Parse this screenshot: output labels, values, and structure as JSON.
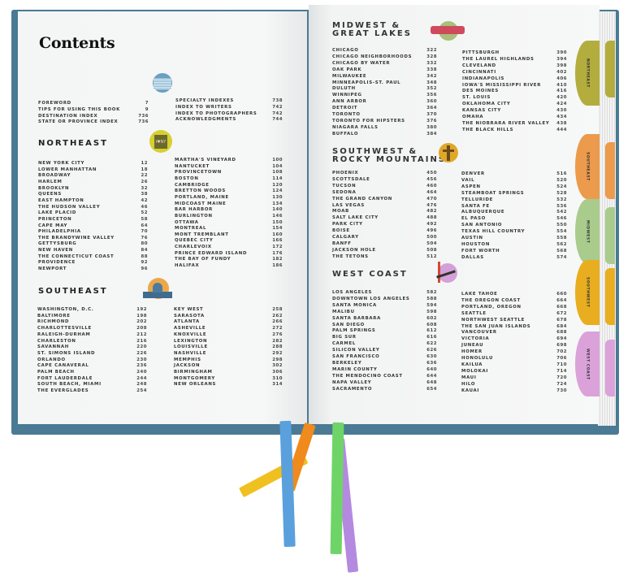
{
  "left_page": {
    "title": "Contents",
    "front_matter": {
      "col1": [
        [
          "FOREWORD",
          "7"
        ],
        [
          "TIPS FOR USING THIS BOOK",
          "9"
        ],
        [
          "DESTINATION INDEX",
          "736"
        ],
        [
          "STATE OR PROVINCE INDEX",
          "736"
        ]
      ],
      "col2": [
        [
          "SPECIALTY INDEXES",
          "738"
        ],
        [
          "INDEX TO WRITERS",
          "742"
        ],
        [
          "INDEX TO PHOTOGRAPHERS",
          "742"
        ],
        [
          "ACKNOWLEDGMENTS",
          "744"
        ]
      ]
    },
    "northeast": {
      "heading": "NORTHEAST",
      "icon_text": "I♥NY",
      "col1": [
        [
          "NEW YORK CITY",
          "12"
        ],
        [
          "LOWER MANHATTAN",
          "18"
        ],
        [
          "BROADWAY",
          "22"
        ],
        [
          "HARLEM",
          "26"
        ],
        [
          "BROOKLYN",
          "32"
        ],
        [
          "QUEENS",
          "38"
        ],
        [
          "EAST HAMPTON",
          "42"
        ],
        [
          "THE HUDSON VALLEY",
          "46"
        ],
        [
          "LAKE PLACID",
          "52"
        ],
        [
          "PRINCETON",
          "58"
        ],
        [
          "CAPE MAY",
          "64"
        ],
        [
          "PHILADELPHIA",
          "70"
        ],
        [
          "THE BRANDYWINE VALLEY",
          "76"
        ],
        [
          "GETTYSBURG",
          "80"
        ],
        [
          "NEW HAVEN",
          "84"
        ],
        [
          "THE CONNECTICUT COAST",
          "88"
        ],
        [
          "PROVIDENCE",
          "92"
        ],
        [
          "NEWPORT",
          "96"
        ]
      ],
      "col2": [
        [
          "MARTHA'S VINEYARD",
          "100"
        ],
        [
          "NANTUCKET",
          "104"
        ],
        [
          "PROVINCETOWN",
          "108"
        ],
        [
          "BOSTON",
          "114"
        ],
        [
          "CAMBRIDGE",
          "120"
        ],
        [
          "BRETTON WOODS",
          "124"
        ],
        [
          "PORTLAND, MAINE",
          "130"
        ],
        [
          "MIDCOAST MAINE",
          "134"
        ],
        [
          "BAR HARBOR",
          "140"
        ],
        [
          "BURLINGTON",
          "146"
        ],
        [
          "OTTAWA",
          "150"
        ],
        [
          "MONTREAL",
          "154"
        ],
        [
          "MONT TREMBLANT",
          "160"
        ],
        [
          "QUEBEC CITY",
          "166"
        ],
        [
          "CHARLEVOIX",
          "172"
        ],
        [
          "PRINCE EDWARD ISLAND",
          "176"
        ],
        [
          "THE BAY OF FUNDY",
          "182"
        ],
        [
          "HALIFAX",
          "186"
        ]
      ]
    },
    "southeast": {
      "heading": "SOUTHEAST",
      "col1": [
        [
          "WASHINGTON, D.C.",
          "192"
        ],
        [
          "BALTIMORE",
          "198"
        ],
        [
          "RICHMOND",
          "202"
        ],
        [
          "CHARLOTTESVILLE",
          "208"
        ],
        [
          "RALEIGH-DURHAM",
          "212"
        ],
        [
          "CHARLESTON",
          "216"
        ],
        [
          "SAVANNAH",
          "220"
        ],
        [
          "ST. SIMONS ISLAND",
          "226"
        ],
        [
          "ORLANDO",
          "230"
        ],
        [
          "CAPE CANAVERAL",
          "236"
        ],
        [
          "PALM BEACH",
          "240"
        ],
        [
          "FORT LAUDERDALE",
          "244"
        ],
        [
          "SOUTH BEACH, MIAMI",
          "248"
        ],
        [
          "THE EVERGLADES",
          "254"
        ]
      ],
      "col2": [
        [
          "KEY WEST",
          "258"
        ],
        [
          "SARASOTA",
          "262"
        ],
        [
          "ATLANTA",
          "266"
        ],
        [
          "ASHEVILLE",
          "272"
        ],
        [
          "KNOXVILLE",
          "276"
        ],
        [
          "LEXINGTON",
          "282"
        ],
        [
          "LOUISVILLE",
          "288"
        ],
        [
          "NASHVILLE",
          "292"
        ],
        [
          "MEMPHIS",
          "298"
        ],
        [
          "JACKSON",
          "302"
        ],
        [
          "BIRMINGHAM",
          "306"
        ],
        [
          "MONTGOMERY",
          "310"
        ],
        [
          "NEW ORLEANS",
          "314"
        ]
      ]
    }
  },
  "right_page": {
    "midwest": {
      "heading_line1": "MIDWEST &",
      "heading_line2": "GREAT LAKES",
      "col1": [
        [
          "CHICAGO",
          "322"
        ],
        [
          "CHICAGO NEIGHBORHOODS",
          "328"
        ],
        [
          "CHICAGO BY WATER",
          "332"
        ],
        [
          "OAK PARK",
          "338"
        ],
        [
          "MILWAUKEE",
          "342"
        ],
        [
          "MINNEAPOLIS-ST. PAUL",
          "348"
        ],
        [
          "DULUTH",
          "352"
        ],
        [
          "WINNIPEG",
          "356"
        ],
        [
          "ANN ARBOR",
          "360"
        ],
        [
          "DETROIT",
          "364"
        ],
        [
          "TORONTO",
          "370"
        ],
        [
          "TORONTO FOR HIPSTERS",
          "376"
        ],
        [
          "NIAGARA FALLS",
          "380"
        ],
        [
          "BUFFALO",
          "384"
        ]
      ],
      "col2": [
        [
          "PITTSBURGH",
          "390"
        ],
        [
          "THE LAUREL HIGHLANDS",
          "394"
        ],
        [
          "CLEVELAND",
          "398"
        ],
        [
          "CINCINNATI",
          "402"
        ],
        [
          "INDIANAPOLIS",
          "406"
        ],
        [
          "IOWA'S MISSISSIPPI RIVER",
          "410"
        ],
        [
          "DES MOINES",
          "416"
        ],
        [
          "ST. LOUIS",
          "420"
        ],
        [
          "OKLAHOMA CITY",
          "424"
        ],
        [
          "KANSAS CITY",
          "430"
        ],
        [
          "OMAHA",
          "434"
        ],
        [
          "THE NIOBRARA RIVER VALLEY",
          "438"
        ],
        [
          "THE BLACK HILLS",
          "444"
        ]
      ]
    },
    "southwest": {
      "heading_line1": "SOUTHWEST &",
      "heading_line2": "ROCKY MOUNTAINS",
      "col1": [
        [
          "PHOENIX",
          "450"
        ],
        [
          "SCOTTSDALE",
          "456"
        ],
        [
          "TUCSON",
          "460"
        ],
        [
          "SEDONA",
          "464"
        ],
        [
          "THE GRAND CANYON",
          "470"
        ],
        [
          "LAS VEGAS",
          "476"
        ],
        [
          "MOAB",
          "482"
        ],
        [
          "SALT LAKE CITY",
          "488"
        ],
        [
          "PARK CITY",
          "492"
        ],
        [
          "BOISE",
          "496"
        ],
        [
          "CALGARY",
          "500"
        ],
        [
          "BANFF",
          "504"
        ],
        [
          "JACKSON HOLE",
          "508"
        ],
        [
          "THE TETONS",
          "512"
        ]
      ],
      "col2": [
        [
          "DENVER",
          "516"
        ],
        [
          "VAIL",
          "520"
        ],
        [
          "ASPEN",
          "524"
        ],
        [
          "STEAMBOAT SPRINGS",
          "528"
        ],
        [
          "TELLURIDE",
          "532"
        ],
        [
          "SANTA FE",
          "536"
        ],
        [
          "ALBUQUERQUE",
          "542"
        ],
        [
          "EL PASO",
          "546"
        ],
        [
          "SAN ANTONIO",
          "550"
        ],
        [
          "TEXAS HILL COUNTRY",
          "554"
        ],
        [
          "AUSTIN",
          "558"
        ],
        [
          "HOUSTON",
          "562"
        ],
        [
          "FORT WORTH",
          "568"
        ],
        [
          "DALLAS",
          "574"
        ]
      ]
    },
    "westcoast": {
      "heading": "WEST COAST",
      "col1": [
        [
          "LOS ANGELES",
          "582"
        ],
        [
          "DOWNTOWN LOS ANGELES",
          "588"
        ],
        [
          "SANTA MONICA",
          "594"
        ],
        [
          "MALIBU",
          "598"
        ],
        [
          "SANTA BARBARA",
          "602"
        ],
        [
          "SAN DIEGO",
          "608"
        ],
        [
          "PALM SPRINGS",
          "612"
        ],
        [
          "BIG SUR",
          "616"
        ],
        [
          "CARMEL",
          "622"
        ],
        [
          "SILICON VALLEY",
          "626"
        ],
        [
          "SAN FRANCISCO",
          "630"
        ],
        [
          "BERKELEY",
          "636"
        ],
        [
          "MARIN COUNTY",
          "640"
        ],
        [
          "THE MENDOCINO COAST",
          "644"
        ],
        [
          "NAPA VALLEY",
          "648"
        ],
        [
          "SACRAMENTO",
          "654"
        ]
      ],
      "col2": [
        [
          "LAKE TAHOE",
          "660"
        ],
        [
          "THE OREGON COAST",
          "664"
        ],
        [
          "PORTLAND, OREGON",
          "668"
        ],
        [
          "SEATTLE",
          "672"
        ],
        [
          "NORTHWEST SEATTLE",
          "678"
        ],
        [
          "THE SAN JUAN ISLANDS",
          "684"
        ],
        [
          "VANCOUVER",
          "688"
        ],
        [
          "VICTORIA",
          "694"
        ],
        [
          "JUNEAU",
          "698"
        ],
        [
          "HOMER",
          "702"
        ],
        [
          "HONOLULU",
          "706"
        ],
        [
          "KAILUA",
          "710"
        ],
        [
          "MOLOKAI",
          "714"
        ],
        [
          "MAUI",
          "720"
        ],
        [
          "HILO",
          "724"
        ],
        [
          "KAUAI",
          "730"
        ]
      ]
    }
  },
  "tabs": [
    {
      "label": "NORTHEAST",
      "color": "#b3ad3e"
    },
    {
      "label": "SOUTHEAST",
      "color": "#ec9a4c"
    },
    {
      "label": "MIDWEST",
      "color": "#a9cb8c"
    },
    {
      "label": "SOUTHWEST",
      "color": "#e8ae20"
    },
    {
      "label": "WEST COAST",
      "color": "#dba2da"
    }
  ],
  "colors": {
    "cover": "#4a7a94",
    "ribbons": [
      "#5aa0dc",
      "#f0c020",
      "#f08a1c",
      "#b48ae0",
      "#6fd468"
    ]
  }
}
